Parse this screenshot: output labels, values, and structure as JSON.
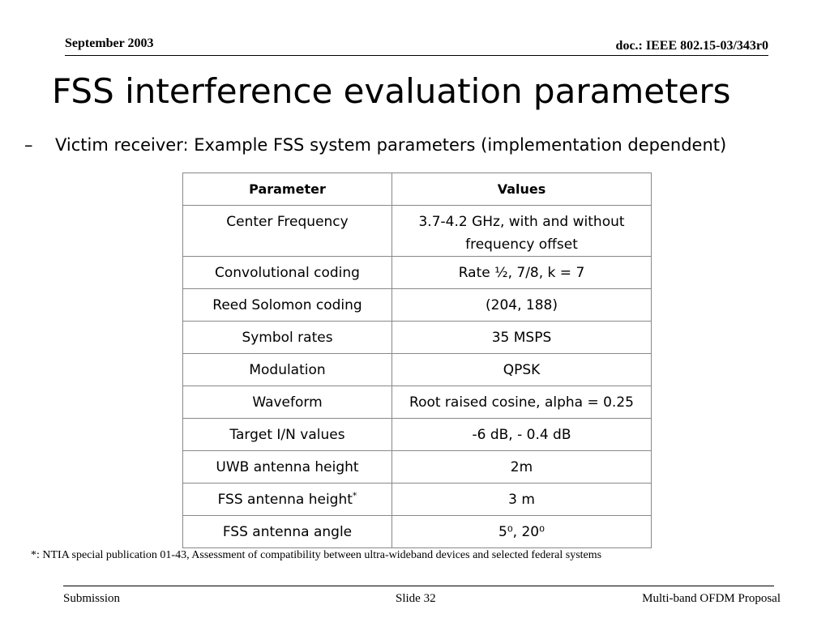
{
  "header": {
    "date": "September 2003",
    "doc": "doc.: IEEE 802.15-03/343r0"
  },
  "title": "FSS interference evaluation parameters",
  "bullet": {
    "marker": "–",
    "text": "Victim receiver: Example FSS system parameters (implementation dependent)"
  },
  "table": {
    "columns": [
      "Parameter",
      "Values"
    ],
    "rows": [
      [
        "Center Frequency",
        "3.7-4.2 GHz, with and without frequency offset"
      ],
      [
        "Convolutional coding",
        "Rate ½, 7/8, k = 7"
      ],
      [
        "Reed Solomon coding",
        "(204, 188)"
      ],
      [
        "Symbol rates",
        "35 MSPS"
      ],
      [
        "Modulation",
        "QPSK"
      ],
      [
        "Waveform",
        "Root raised cosine, alpha = 0.25"
      ],
      [
        "Target I/N values",
        "-6 dB, - 0.4 dB"
      ],
      [
        "UWB antenna height",
        "2m"
      ],
      [
        {
          "text": "FSS antenna height",
          "sup": "*"
        },
        "3 m"
      ],
      [
        "FSS antenna angle",
        "5⁰, 20⁰"
      ]
    ]
  },
  "footnote": "*: NTIA special publication 01-43, Assessment of compatibility between ultra-wideband devices and selected federal systems",
  "footer": {
    "left": "Submission",
    "center": "Slide 32",
    "right": "Multi-band OFDM Proposal"
  }
}
